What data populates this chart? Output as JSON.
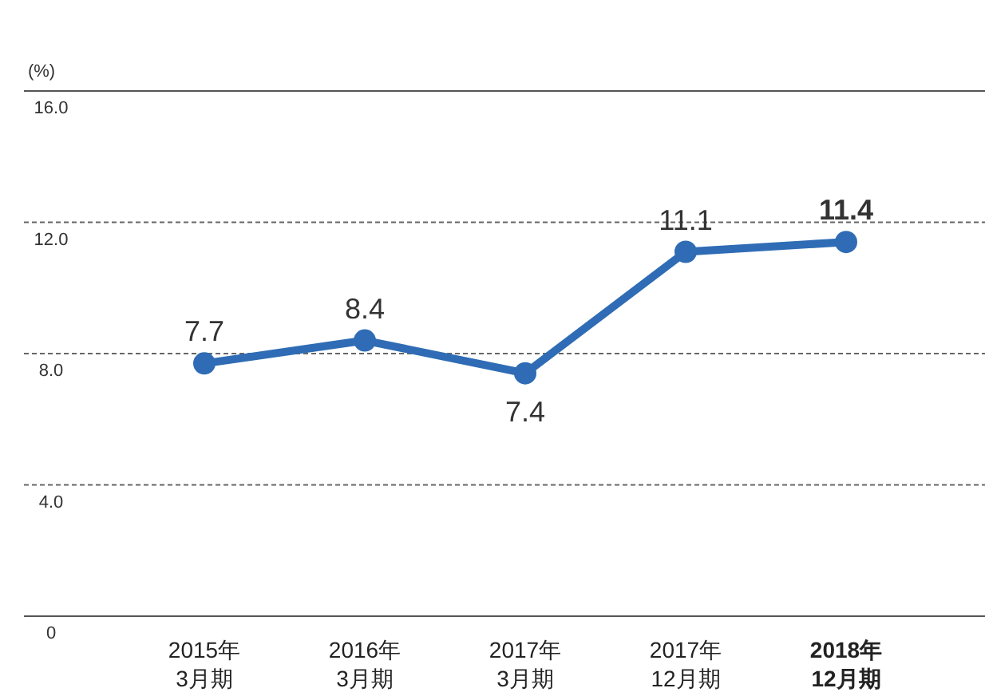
{
  "chart_data": {
    "type": "line",
    "ylabel": "(%)",
    "categories": [
      "2015年\n3月期",
      "2016年\n3月期",
      "2017年\n3月期",
      "2017年\n12月期",
      "**2018年\n12月期**"
    ],
    "values": [
      7.7,
      8.4,
      7.4,
      11.1,
      11.4
    ],
    "color": "#2f6cb5",
    "ylim": [
      0,
      16
    ],
    "yticks": [
      {
        "value": 0,
        "label": "0"
      },
      {
        "value": 4,
        "label": "4.0"
      },
      {
        "value": 8,
        "label": "8.0"
      },
      {
        "value": 12,
        "label": "12.0"
      },
      {
        "value": 16,
        "label": "16.0"
      }
    ],
    "grid": "y",
    "marker": "circle",
    "line_style": "solid",
    "data_labels": true
  }
}
